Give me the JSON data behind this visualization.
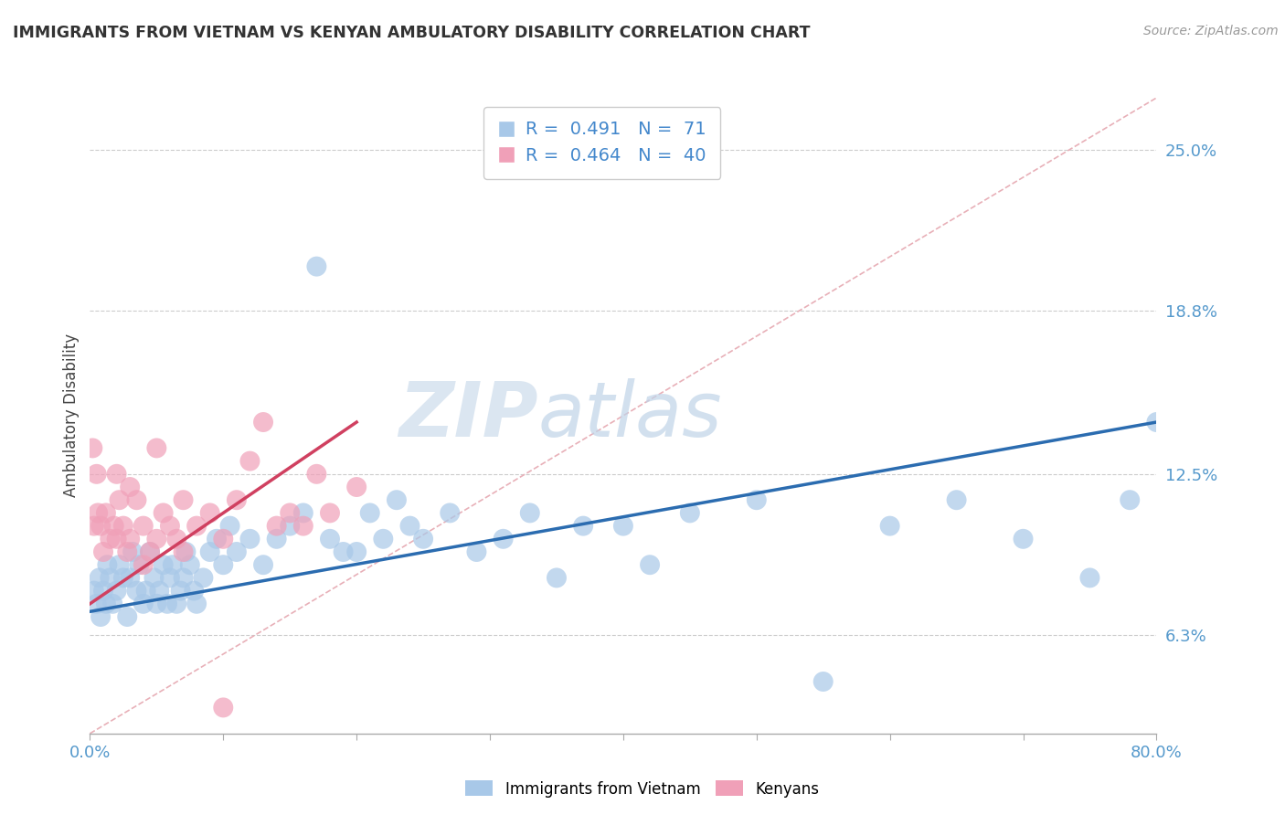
{
  "title": "IMMIGRANTS FROM VIETNAM VS KENYAN AMBULATORY DISABILITY CORRELATION CHART",
  "source": "Source: ZipAtlas.com",
  "ylabel": "Ambulatory Disability",
  "yticks": [
    6.3,
    12.5,
    18.8,
    25.0
  ],
  "ytick_labels": [
    "6.3%",
    "12.5%",
    "18.8%",
    "25.0%"
  ],
  "xlim": [
    0.0,
    80.0
  ],
  "ylim": [
    2.5,
    27.0
  ],
  "blue_R": 0.491,
  "blue_N": 71,
  "pink_R": 0.464,
  "pink_N": 40,
  "blue_color": "#A8C8E8",
  "pink_color": "#F0A0B8",
  "blue_line_color": "#2B6CB0",
  "pink_line_color": "#D04060",
  "diagonal_color": "#E8B0B8",
  "watermark_zip": "ZIP",
  "watermark_atlas": "atlas",
  "legend_blue_label": "Immigrants from Vietnam",
  "legend_pink_label": "Kenyans",
  "blue_x": [
    0.3,
    0.5,
    0.7,
    0.8,
    1.0,
    1.2,
    1.3,
    1.5,
    1.7,
    2.0,
    2.2,
    2.5,
    2.8,
    3.0,
    3.2,
    3.5,
    3.7,
    4.0,
    4.2,
    4.5,
    4.8,
    5.0,
    5.2,
    5.5,
    5.8,
    6.0,
    6.2,
    6.5,
    6.8,
    7.0,
    7.2,
    7.5,
    7.8,
    8.0,
    8.5,
    9.0,
    9.5,
    10.0,
    10.5,
    11.0,
    12.0,
    13.0,
    14.0,
    15.0,
    16.0,
    17.0,
    18.0,
    19.0,
    20.0,
    21.0,
    22.0,
    23.0,
    24.0,
    25.0,
    27.0,
    29.0,
    31.0,
    33.0,
    35.0,
    37.0,
    40.0,
    42.0,
    45.0,
    50.0,
    55.0,
    60.0,
    65.0,
    70.0,
    75.0,
    78.0,
    80.0
  ],
  "blue_y": [
    8.0,
    7.5,
    8.5,
    7.0,
    8.0,
    7.5,
    9.0,
    8.5,
    7.5,
    8.0,
    9.0,
    8.5,
    7.0,
    8.5,
    9.5,
    8.0,
    9.0,
    7.5,
    8.0,
    9.5,
    8.5,
    7.5,
    8.0,
    9.0,
    7.5,
    8.5,
    9.0,
    7.5,
    8.0,
    8.5,
    9.5,
    9.0,
    8.0,
    7.5,
    8.5,
    9.5,
    10.0,
    9.0,
    10.5,
    9.5,
    10.0,
    9.0,
    10.0,
    10.5,
    11.0,
    20.5,
    10.0,
    9.5,
    9.5,
    11.0,
    10.0,
    11.5,
    10.5,
    10.0,
    11.0,
    9.5,
    10.0,
    11.0,
    8.5,
    10.5,
    10.5,
    9.0,
    11.0,
    11.5,
    4.5,
    10.5,
    11.5,
    10.0,
    8.5,
    11.5,
    14.5
  ],
  "pink_x": [
    0.2,
    0.3,
    0.5,
    0.6,
    0.8,
    1.0,
    1.2,
    1.5,
    1.8,
    2.0,
    2.2,
    2.5,
    2.8,
    3.0,
    3.5,
    4.0,
    4.5,
    5.0,
    5.5,
    6.0,
    6.5,
    7.0,
    8.0,
    9.0,
    10.0,
    11.0,
    12.0,
    13.0,
    14.0,
    15.0,
    16.0,
    17.0,
    18.0,
    20.0,
    3.0,
    5.0,
    7.0,
    2.0,
    4.0,
    10.0
  ],
  "pink_y": [
    13.5,
    10.5,
    12.5,
    11.0,
    10.5,
    9.5,
    11.0,
    10.0,
    10.5,
    10.0,
    11.5,
    10.5,
    9.5,
    10.0,
    11.5,
    10.5,
    9.5,
    10.0,
    11.0,
    10.5,
    10.0,
    9.5,
    10.5,
    11.0,
    10.0,
    11.5,
    13.0,
    14.5,
    10.5,
    11.0,
    10.5,
    12.5,
    11.0,
    12.0,
    12.0,
    13.5,
    11.5,
    12.5,
    9.0,
    3.5
  ],
  "blue_line_x0": 0.0,
  "blue_line_x1": 80.0,
  "blue_line_y0": 7.2,
  "blue_line_y1": 14.5,
  "pink_line_x0": 0.0,
  "pink_line_x1": 20.0,
  "pink_line_y0": 7.5,
  "pink_line_y1": 14.5,
  "diag_x0": 0.0,
  "diag_x1": 80.0,
  "diag_y0": 2.5,
  "diag_y1": 27.0
}
